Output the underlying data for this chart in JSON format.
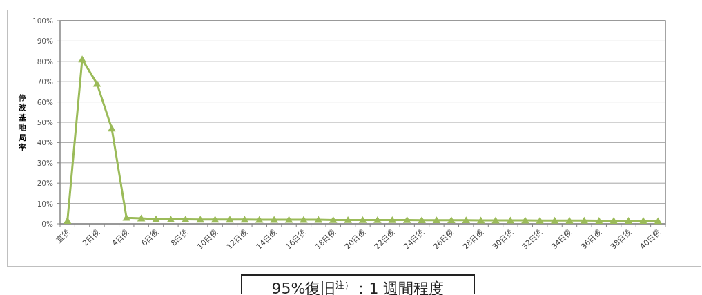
{
  "chart_data": {
    "type": "line",
    "ylabel": "停波基地局率",
    "categories": [
      "直後",
      null,
      "2日後",
      null,
      "4日後",
      null,
      "6日後",
      null,
      "8日後",
      null,
      "10日後",
      null,
      "12日後",
      null,
      "14日後",
      null,
      "16日後",
      null,
      "18日後",
      null,
      "20日後",
      null,
      "22日後",
      null,
      "24日後",
      null,
      "26日後",
      null,
      "28日後",
      null,
      "30日後",
      null,
      "32日後",
      null,
      "34日後",
      null,
      "36日後",
      null,
      "38日後",
      null,
      "40日後"
    ],
    "values": [
      1.5,
      81,
      69,
      47,
      3,
      2.7,
      2.3,
      2.2,
      2.2,
      2.1,
      2.1,
      2.1,
      2.1,
      2.0,
      2.0,
      2.0,
      2.0,
      2.0,
      1.9,
      1.9,
      1.9,
      1.9,
      1.9,
      1.9,
      1.8,
      1.8,
      1.8,
      1.8,
      1.7,
      1.7,
      1.7,
      1.7,
      1.6,
      1.6,
      1.6,
      1.6,
      1.5,
      1.5,
      1.5,
      1.5,
      1.4
    ],
    "color": "#9bbb59",
    "marker": "triangle",
    "line_style": "solid",
    "grid": "y",
    "ylim": [
      0,
      100
    ],
    "yticks": [
      {
        "value": 0,
        "label": "0%"
      },
      {
        "value": 10,
        "label": "10%"
      },
      {
        "value": 20,
        "label": "20%"
      },
      {
        "value": 30,
        "label": "30%"
      },
      {
        "value": 40,
        "label": "40%"
      },
      {
        "value": 50,
        "label": "50%"
      },
      {
        "value": 60,
        "label": "60%"
      },
      {
        "value": 70,
        "label": "70%"
      },
      {
        "value": 80,
        "label": "80%"
      },
      {
        "value": 90,
        "label": "90%"
      },
      {
        "value": 100,
        "label": "100%"
      }
    ],
    "annotations": [
      "95%復旧$^{注）}$：1 週間程度"
    ]
  }
}
